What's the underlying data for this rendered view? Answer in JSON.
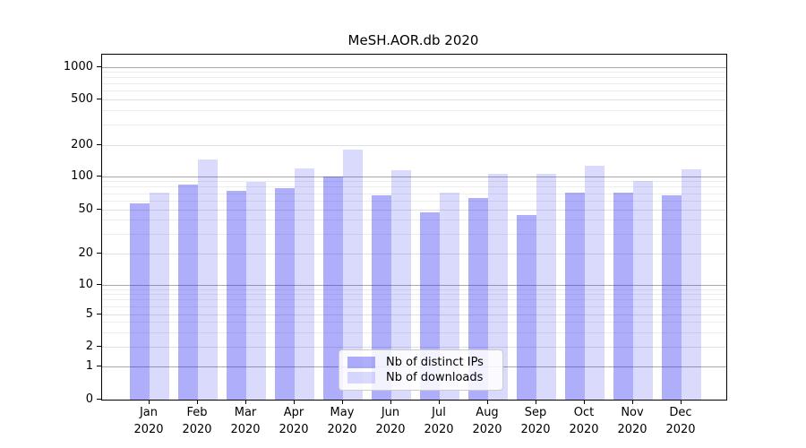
{
  "title": "MeSH.AOR.db 2020",
  "colors": {
    "distinct_ips_bar": "rgba(22,22,242,0.35)",
    "downloads_bar": "rgba(22,22,242,0.16)",
    "grid_decade": "#a9a9a9",
    "grid_light": "#e0e0e0"
  },
  "legend": {
    "items": [
      {
        "label": "Nb of distinct IPs",
        "color": "rgba(22,22,242,0.35)"
      },
      {
        "label": "Nb of downloads",
        "color": "rgba(22,22,242,0.16)"
      }
    ]
  },
  "chart_data": {
    "type": "bar",
    "title": "MeSH.AOR.db 2020",
    "categories": [
      "Jan 2020",
      "Feb 2020",
      "Mar 2020",
      "Apr 2020",
      "May 2020",
      "Jun 2020",
      "Jul 2020",
      "Aug 2020",
      "Sep 2020",
      "Oct 2020",
      "Nov 2020",
      "Dec 2020"
    ],
    "series": [
      {
        "name": "Nb of distinct IPs",
        "color": "rgba(22,22,242,0.35)",
        "values": [
          57,
          84,
          74,
          78,
          101,
          68,
          47,
          64,
          45,
          72,
          71,
          67
        ]
      },
      {
        "name": "Nb of downloads",
        "color": "rgba(22,22,242,0.16)",
        "values": [
          71,
          145,
          90,
          120,
          180,
          115,
          72,
          107,
          107,
          128,
          91,
          117
        ]
      }
    ],
    "xlabel": "",
    "ylabel": "",
    "yscale": "symlog",
    "ylim": [
      0,
      1000
    ],
    "y_ticks": [
      0,
      1,
      2,
      5,
      10,
      20,
      50,
      100,
      200,
      500,
      1000
    ],
    "y_minor_ticks": [
      3,
      4,
      6,
      7,
      8,
      9,
      30,
      40,
      60,
      70,
      80,
      90,
      300,
      400,
      600,
      700,
      800,
      900
    ],
    "grid": true,
    "legend_position": "lower center"
  }
}
